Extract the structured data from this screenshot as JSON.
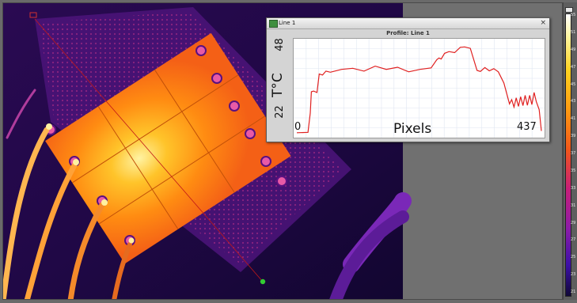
{
  "profile_window": {
    "title": "Line 1",
    "close_glyph": "×",
    "chart_title": "Profile: Line 1"
  },
  "chart_data": {
    "type": "line",
    "title": "Profile: Line 1",
    "xlabel": "Pixels",
    "ylabel": "T°C",
    "xlim": [
      0,
      437
    ],
    "ylim": [
      22,
      48
    ],
    "x_tick_labels": [
      "0",
      "437"
    ],
    "y_tick_labels": [
      "22",
      "48"
    ],
    "grid": true,
    "line_color": "#e02020",
    "series": [
      {
        "x": [
          0,
          20,
          24,
          26,
          30,
          36,
          40,
          46,
          52,
          60,
          80,
          100,
          120,
          140,
          160,
          180,
          200,
          220,
          240,
          250,
          254,
          258,
          264,
          272,
          282,
          292,
          300,
          310,
          322,
          328,
          336,
          344,
          352,
          360,
          370,
          380,
          384,
          388,
          392,
          396,
          400,
          404,
          408,
          412,
          416,
          420,
          424,
          428,
          433,
          437
        ],
        "y": [
          22.5,
          22.6,
          28,
          34,
          34.2,
          33.8,
          39,
          38.7,
          39.8,
          39.5,
          40.3,
          40.6,
          39.8,
          41.2,
          40.3,
          40.9,
          39.6,
          40.3,
          40.7,
          43,
          43.5,
          43.2,
          44.8,
          45.3,
          45,
          46.5,
          46.6,
          46.2,
          40,
          39.7,
          40.8,
          39.9,
          40.5,
          39.6,
          36.5,
          30.6,
          31.8,
          29.7,
          32.3,
          29.9,
          32.6,
          30.1,
          33,
          30.2,
          33,
          30.4,
          33.8,
          31.2,
          29,
          23
        ]
      }
    ]
  },
  "palette": {
    "ticks": [
      "55",
      "51",
      "49",
      "47",
      "45",
      "43",
      "41",
      "39",
      "37",
      "35",
      "33",
      "31",
      "29",
      "27",
      "25",
      "23",
      "21"
    ]
  },
  "colors": {
    "viewer_background": "#707070",
    "window_background": "#d4d4d4",
    "line_profile": "#e02020",
    "cursor_marker": "#33cc33"
  }
}
